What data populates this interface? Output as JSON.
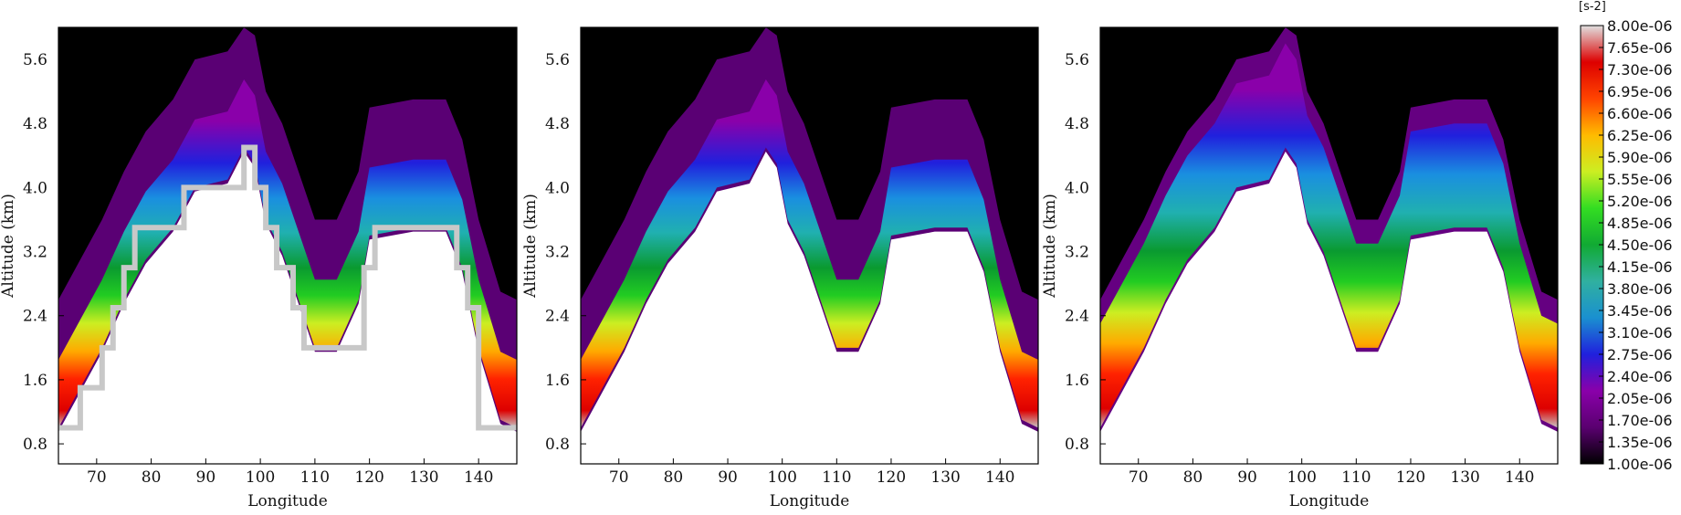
{
  "chart_data": [
    {
      "type": "heatmap",
      "xlabel": "Longitude",
      "ylabel": "Altitude (km)",
      "xlim": [
        63,
        147
      ],
      "ylim": [
        0.55,
        6.0
      ],
      "xticks": [
        70,
        80,
        90,
        100,
        110,
        120,
        130,
        140
      ],
      "yticks": [
        0.8,
        1.6,
        2.4,
        3.2,
        4.0,
        4.8,
        5.6
      ],
      "terrain": [
        {
          "x": [
            63,
            67,
            67,
            71,
            71,
            73,
            73,
            75,
            75,
            77,
            77,
            79,
            79,
            86,
            86,
            88,
            88,
            97,
            97,
            99,
            99,
            101,
            101,
            103,
            103,
            106,
            106,
            108,
            108,
            119,
            119,
            121,
            121,
            136,
            136,
            138,
            138,
            140,
            140,
            147
          ],
          "y": [
            1.0,
            1.0,
            1.5,
            1.5,
            2.0,
            2.0,
            2.5,
            2.5,
            3.0,
            3.0,
            3.5,
            3.5,
            3.5,
            3.5,
            4.0,
            4.0,
            4.0,
            4.0,
            4.5,
            4.5,
            4.0,
            4.0,
            3.5,
            3.5,
            3.0,
            3.0,
            2.5,
            2.5,
            2.0,
            2.0,
            3.0,
            3.0,
            3.5,
            3.5,
            3.0,
            3.0,
            2.5,
            2.5,
            1.0,
            1.0
          ]
        }
      ],
      "colorbar_min": 1e-06,
      "colorbar_max": 8e-06
    },
    {
      "type": "heatmap",
      "xlabel": "Longitude",
      "ylabel": "Altitude (km)",
      "xlim": [
        63,
        147
      ],
      "ylim": [
        0.55,
        6.0
      ],
      "xticks": [
        70,
        80,
        90,
        100,
        110,
        120,
        130,
        140
      ],
      "yticks": [
        0.8,
        1.6,
        2.4,
        3.2,
        4.0,
        4.8,
        5.6
      ],
      "colorbar_min": 1e-06,
      "colorbar_max": 8e-06
    },
    {
      "type": "heatmap",
      "xlabel": "Longitude",
      "ylabel": "Altitude (km)",
      "xlim": [
        63,
        147
      ],
      "ylim": [
        0.55,
        6.0
      ],
      "xticks": [
        70,
        80,
        90,
        100,
        110,
        120,
        130,
        140
      ],
      "yticks": [
        0.8,
        1.6,
        2.4,
        3.2,
        4.0,
        4.8,
        5.6
      ],
      "colorbar_min": 1e-06,
      "colorbar_max": 8e-06
    }
  ],
  "colorbar": {
    "unit": "[s-2]",
    "tick_labels": [
      "8.00e-06",
      "7.65e-06",
      "7.30e-06",
      "6.95e-06",
      "6.60e-06",
      "6.25e-06",
      "5.90e-06",
      "5.55e-06",
      "5.20e-06",
      "4.85e-06",
      "4.50e-06",
      "4.15e-06",
      "3.80e-06",
      "3.45e-06",
      "3.10e-06",
      "2.75e-06",
      "2.40e-06",
      "2.05e-06",
      "1.70e-06",
      "1.35e-06",
      "1.00e-06"
    ],
    "colors": [
      "#000000",
      "#5a0070",
      "#8a00aa",
      "#2020dd",
      "#1a90d0",
      "#30b0a0",
      "#11aa33",
      "#33dd22",
      "#ccee22",
      "#ffbb00",
      "#ff4400",
      "#dd0000",
      "#e0e0e0"
    ],
    "terrain_color": "#c8c8c8"
  }
}
